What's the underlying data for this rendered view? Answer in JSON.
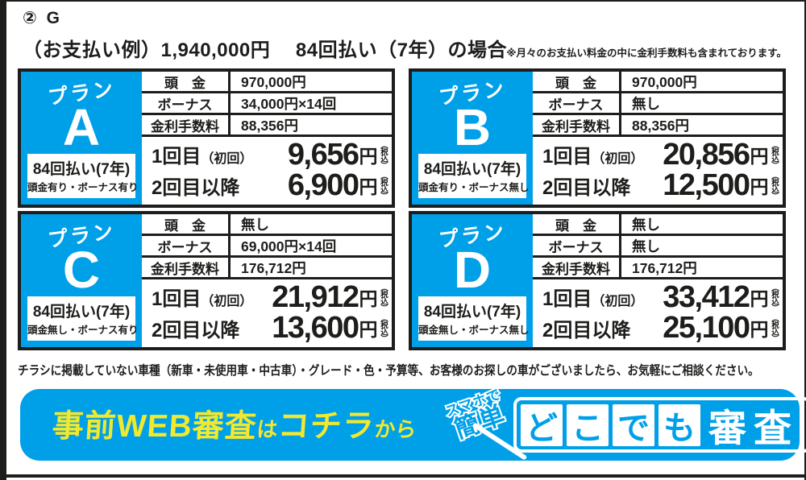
{
  "colors": {
    "blue": "#00a0e9",
    "yellow": "#f2e82d",
    "black": "#1d1d1b"
  },
  "header": {
    "tag": "② G",
    "example": "（お支払い例）1,940,000円　 84回払い（7年）の場合",
    "note": "※月々のお支払い料金の中に金利手数料も含まれております。"
  },
  "plans": [
    {
      "plan_word": "プラン",
      "letter": "A",
      "terms1": "84回払い(7年)",
      "terms2": "頭金有り・ボーナス有り",
      "rows": [
        {
          "label": "頭　金",
          "value": "970,000円"
        },
        {
          "label": "ボーナス",
          "value": "34,000円×14回"
        },
        {
          "label": "金利手数料",
          "value": "88,356円"
        }
      ],
      "pays": [
        {
          "label": "1回目",
          "sub": "（初回）",
          "amount": "9,656",
          "unit": "円",
          "tax": "（税込）"
        },
        {
          "label": "2回目以降",
          "sub": "",
          "amount": "6,900",
          "unit": "円",
          "tax": "（税込）"
        }
      ]
    },
    {
      "plan_word": "プラン",
      "letter": "B",
      "terms1": "84回払い(7年)",
      "terms2": "頭金有り・ボーナス無し",
      "rows": [
        {
          "label": "頭　金",
          "value": "970,000円"
        },
        {
          "label": "ボーナス",
          "value": "無し"
        },
        {
          "label": "金利手数料",
          "value": "88,356円"
        }
      ],
      "pays": [
        {
          "label": "1回目",
          "sub": "（初回）",
          "amount": "20,856",
          "unit": "円",
          "tax": "（税込）"
        },
        {
          "label": "2回目以降",
          "sub": "",
          "amount": "12,500",
          "unit": "円",
          "tax": "（税込）"
        }
      ]
    },
    {
      "plan_word": "プラン",
      "letter": "C",
      "terms1": "84回払い(7年)",
      "terms2": "頭金無し・ボーナス有り",
      "rows": [
        {
          "label": "頭　金",
          "value": "無し"
        },
        {
          "label": "ボーナス",
          "value": "69,000円×14回"
        },
        {
          "label": "金利手数料",
          "value": "176,712円"
        }
      ],
      "pays": [
        {
          "label": "1回目",
          "sub": "（初回）",
          "amount": "21,912",
          "unit": "円",
          "tax": "（税込）"
        },
        {
          "label": "2回目以降",
          "sub": "",
          "amount": "13,600",
          "unit": "円",
          "tax": "（税込）"
        }
      ]
    },
    {
      "plan_word": "プラン",
      "letter": "D",
      "terms1": "84回払い(7年)",
      "terms2": "頭金無し・ボーナス無し",
      "rows": [
        {
          "label": "頭　金",
          "value": "無し"
        },
        {
          "label": "ボーナス",
          "value": "無し"
        },
        {
          "label": "金利手数料",
          "value": "176,712円"
        }
      ],
      "pays": [
        {
          "label": "1回目",
          "sub": "（初回）",
          "amount": "33,412",
          "unit": "円",
          "tax": "（税込）"
        },
        {
          "label": "2回目以降",
          "sub": "",
          "amount": "25,100",
          "unit": "円",
          "tax": "（税込）"
        }
      ]
    }
  ],
  "notice": "チラシに掲載していない車種（新車・未使用車・中古車）・グレード・色・予算等、お客様のお探しの車がございましたら、お気軽にご相談ください。",
  "cta": {
    "text_main1": "事前WEB審査",
    "text_small1": "は",
    "text_main2": "コチラ",
    "text_small2": "から",
    "badge_top": "スマホで",
    "badge_bottom": "簡単",
    "logo_tiles": [
      "ど",
      "こ",
      "で",
      "も"
    ],
    "logo_suffix": "審査"
  }
}
